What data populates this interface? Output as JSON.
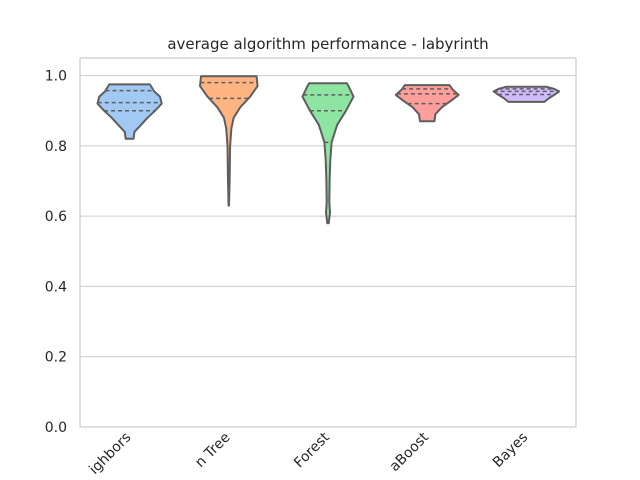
{
  "chart_data": {
    "type": "violin",
    "title": "average algorithm performance - labyrinth",
    "categories": [
      "Nearest Neighbors",
      "Decision Tree",
      "Random Forest",
      "AdaBoost",
      "Naive Bayes"
    ],
    "visible_category_labels": [
      "ighbors",
      "n Tree",
      "Forest",
      "aBoost",
      "Bayes"
    ],
    "xlabel": "",
    "ylabel": "",
    "ylim": [
      0,
      1.05
    ],
    "yticks": [
      0.0,
      0.2,
      0.4,
      0.6,
      0.8,
      1.0
    ],
    "ytick_labels": [
      "0.0",
      "0.2",
      "0.4",
      "0.6",
      "0.8",
      "1.0"
    ],
    "grid": "horizontal",
    "series": [
      {
        "color": "#a1c9f4",
        "min": 0.82,
        "max": 0.975,
        "quartiles": [
          0.9,
          0.923,
          0.957
        ],
        "profile": [
          [
            0.82,
            0.12
          ],
          [
            0.84,
            0.15
          ],
          [
            0.86,
            0.35
          ],
          [
            0.88,
            0.55
          ],
          [
            0.9,
            0.78
          ],
          [
            0.92,
            0.98
          ],
          [
            0.94,
            0.93
          ],
          [
            0.955,
            0.75
          ],
          [
            0.975,
            0.62
          ]
        ]
      },
      {
        "color": "#ffb482",
        "min": 0.63,
        "max": 0.998,
        "quartiles": [
          0.935,
          0.98,
          0.998
        ],
        "profile": [
          [
            0.63,
            0.005
          ],
          [
            0.7,
            0.025
          ],
          [
            0.8,
            0.04
          ],
          [
            0.85,
            0.08
          ],
          [
            0.88,
            0.15
          ],
          [
            0.91,
            0.35
          ],
          [
            0.94,
            0.65
          ],
          [
            0.97,
            0.88
          ],
          [
            0.998,
            0.85
          ]
        ]
      },
      {
        "color": "#8de5a1",
        "min": 0.58,
        "max": 0.978,
        "quartiles": [
          0.81,
          0.9,
          0.945
        ],
        "profile": [
          [
            0.58,
            0.02
          ],
          [
            0.61,
            0.06
          ],
          [
            0.64,
            0.04
          ],
          [
            0.7,
            0.05
          ],
          [
            0.76,
            0.07
          ],
          [
            0.81,
            0.11
          ],
          [
            0.86,
            0.28
          ],
          [
            0.9,
            0.55
          ],
          [
            0.94,
            0.78
          ],
          [
            0.96,
            0.68
          ],
          [
            0.978,
            0.58
          ]
        ]
      },
      {
        "color": "#ff9f9b",
        "min": 0.87,
        "max": 0.973,
        "quartiles": [
          0.92,
          0.948,
          0.962
        ],
        "profile": [
          [
            0.87,
            0.22
          ],
          [
            0.89,
            0.25
          ],
          [
            0.91,
            0.45
          ],
          [
            0.93,
            0.75
          ],
          [
            0.945,
            0.96
          ],
          [
            0.96,
            0.78
          ],
          [
            0.973,
            0.68
          ]
        ]
      },
      {
        "color": "#d0bbff",
        "min": 0.925,
        "max": 0.968,
        "quartiles": [
          0.946,
          0.955,
          0.962
        ],
        "profile": [
          [
            0.925,
            0.55
          ],
          [
            0.935,
            0.68
          ],
          [
            0.945,
            0.85
          ],
          [
            0.955,
            1.0
          ],
          [
            0.962,
            0.85
          ],
          [
            0.968,
            0.62
          ]
        ]
      }
    ]
  }
}
